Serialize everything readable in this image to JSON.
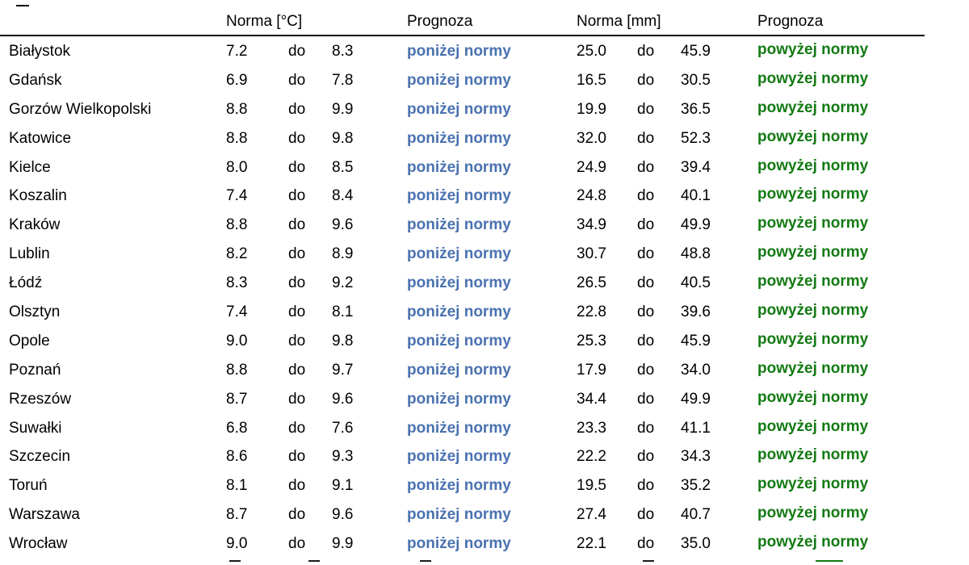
{
  "header": {
    "temp_norm": "Norma [°C]",
    "temp_forecast": "Prognoza",
    "precip_norm": "Norma [mm]",
    "precip_forecast": "Prognoza"
  },
  "colors": {
    "below_norm": "#4a72b0",
    "above_norm": "#137a13",
    "rule": "#000000"
  },
  "rows": [
    {
      "city": "Białystok",
      "t_min": "7.2",
      "t_do": "do",
      "t_max": "8.3",
      "t_fc": "poniżej normy",
      "p_min": "25.0",
      "p_do": "do",
      "p_max": "45.9",
      "p_fc": "powyżej normy"
    },
    {
      "city": "Gdańsk",
      "t_min": "6.9",
      "t_do": "do",
      "t_max": "7.8",
      "t_fc": "poniżej normy",
      "p_min": "16.5",
      "p_do": "do",
      "p_max": "30.5",
      "p_fc": "powyżej normy"
    },
    {
      "city": "Gorzów Wielkopolski",
      "t_min": "8.8",
      "t_do": "do",
      "t_max": "9.9",
      "t_fc": "poniżej normy",
      "p_min": "19.9",
      "p_do": "do",
      "p_max": "36.5",
      "p_fc": "powyżej normy"
    },
    {
      "city": "Katowice",
      "t_min": "8.8",
      "t_do": "do",
      "t_max": "9.8",
      "t_fc": "poniżej normy",
      "p_min": "32.0",
      "p_do": "do",
      "p_max": "52.3",
      "p_fc": "powyżej normy"
    },
    {
      "city": "Kielce",
      "t_min": "8.0",
      "t_do": "do",
      "t_max": "8.5",
      "t_fc": "poniżej normy",
      "p_min": "24.9",
      "p_do": "do",
      "p_max": "39.4",
      "p_fc": "powyżej normy"
    },
    {
      "city": "Koszalin",
      "t_min": "7.4",
      "t_do": "do",
      "t_max": "8.4",
      "t_fc": "poniżej normy",
      "p_min": "24.8",
      "p_do": "do",
      "p_max": "40.1",
      "p_fc": "powyżej normy"
    },
    {
      "city": "Kraków",
      "t_min": "8.8",
      "t_do": "do",
      "t_max": "9.6",
      "t_fc": "poniżej normy",
      "p_min": "34.9",
      "p_do": "do",
      "p_max": "49.9",
      "p_fc": "powyżej normy"
    },
    {
      "city": "Lublin",
      "t_min": "8.2",
      "t_do": "do",
      "t_max": "8.9",
      "t_fc": "poniżej normy",
      "p_min": "30.7",
      "p_do": "do",
      "p_max": "48.8",
      "p_fc": "powyżej normy"
    },
    {
      "city": "Łódź",
      "t_min": "8.3",
      "t_do": "do",
      "t_max": "9.2",
      "t_fc": "poniżej normy",
      "p_min": "26.5",
      "p_do": "do",
      "p_max": "40.5",
      "p_fc": "powyżej normy"
    },
    {
      "city": "Olsztyn",
      "t_min": "7.4",
      "t_do": "do",
      "t_max": "8.1",
      "t_fc": "poniżej normy",
      "p_min": "22.8",
      "p_do": "do",
      "p_max": "39.6",
      "p_fc": "powyżej normy"
    },
    {
      "city": "Opole",
      "t_min": "9.0",
      "t_do": "do",
      "t_max": "9.8",
      "t_fc": "poniżej normy",
      "p_min": "25.3",
      "p_do": "do",
      "p_max": "45.9",
      "p_fc": "powyżej normy"
    },
    {
      "city": "Poznań",
      "t_min": "8.8",
      "t_do": "do",
      "t_max": "9.7",
      "t_fc": "poniżej normy",
      "p_min": "17.9",
      "p_do": "do",
      "p_max": "34.0",
      "p_fc": "powyżej normy"
    },
    {
      "city": "Rzeszów",
      "t_min": "8.7",
      "t_do": "do",
      "t_max": "9.6",
      "t_fc": "poniżej normy",
      "p_min": "34.4",
      "p_do": "do",
      "p_max": "49.9",
      "p_fc": "powyżej normy"
    },
    {
      "city": "Suwałki",
      "t_min": "6.8",
      "t_do": "do",
      "t_max": "7.6",
      "t_fc": "poniżej normy",
      "p_min": "23.3",
      "p_do": "do",
      "p_max": "41.1",
      "p_fc": "powyżej normy"
    },
    {
      "city": "Szczecin",
      "t_min": "8.6",
      "t_do": "do",
      "t_max": "9.3",
      "t_fc": "poniżej normy",
      "p_min": "22.2",
      "p_do": "do",
      "p_max": "34.3",
      "p_fc": "powyżej normy"
    },
    {
      "city": "Toruń",
      "t_min": "8.1",
      "t_do": "do",
      "t_max": "9.1",
      "t_fc": "poniżej normy",
      "p_min": "19.5",
      "p_do": "do",
      "p_max": "35.2",
      "p_fc": "powyżej normy"
    },
    {
      "city": "Warszawa",
      "t_min": "8.7",
      "t_do": "do",
      "t_max": "9.6",
      "t_fc": "poniżej normy",
      "p_min": "27.4",
      "p_do": "do",
      "p_max": "40.7",
      "p_fc": "powyżej normy"
    },
    {
      "city": "Wrocław",
      "t_min": "9.0",
      "t_do": "do",
      "t_max": "9.9",
      "t_fc": "poniżej normy",
      "p_min": "22.1",
      "p_do": "do",
      "p_max": "35.0",
      "p_fc": "powyżej normy"
    }
  ]
}
